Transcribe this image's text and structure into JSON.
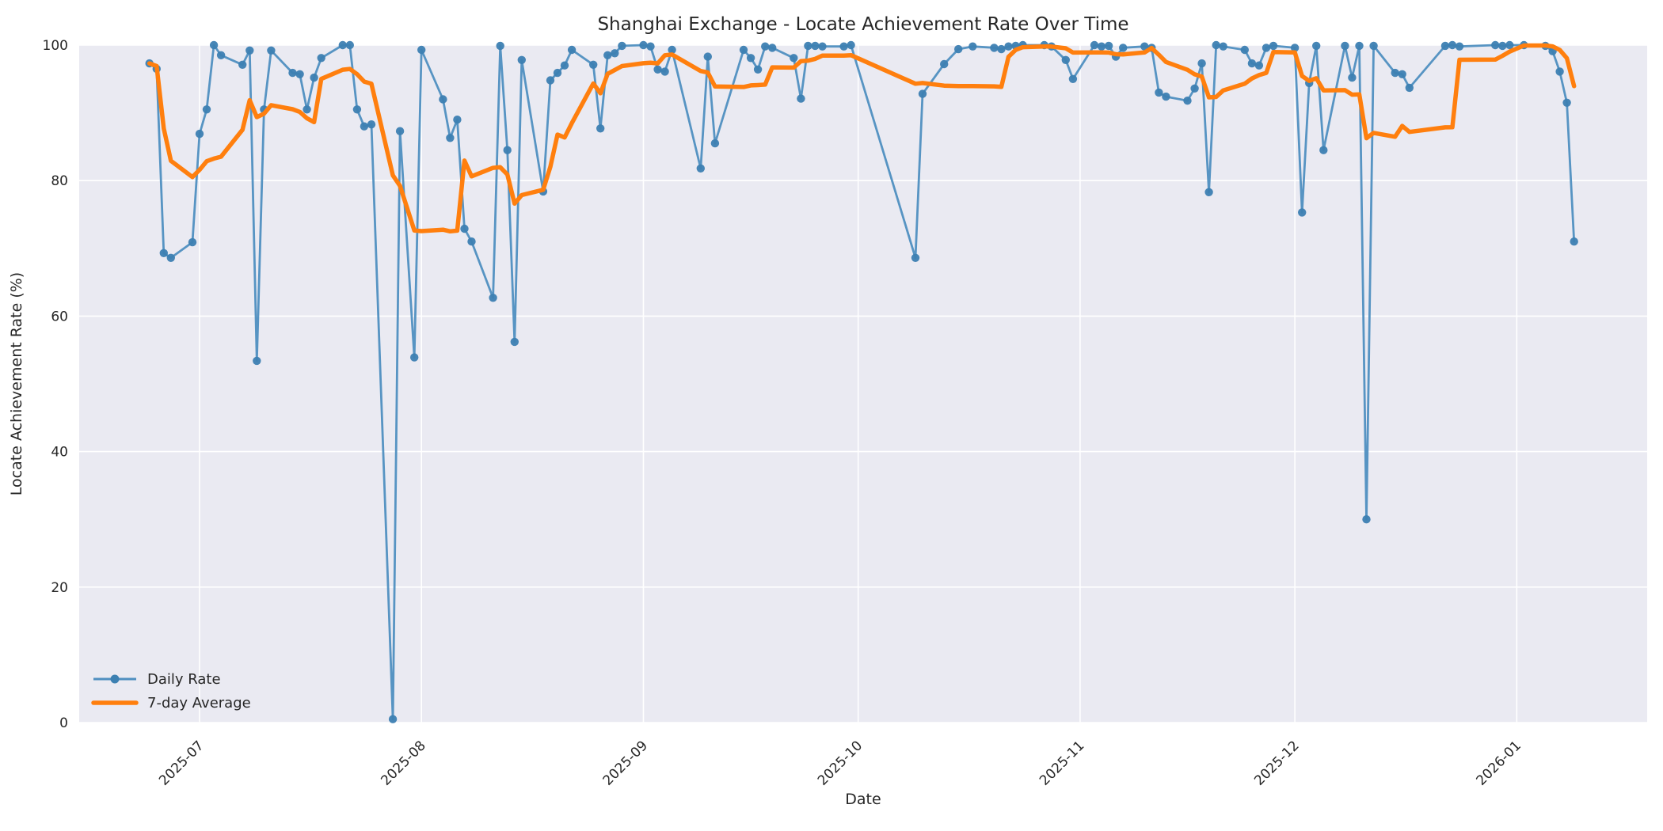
{
  "title": "Shanghai Exchange - Locate Achievement Rate Over Time",
  "axes": {
    "xlabel": "Date",
    "ylabel": "Locate Achievement Rate (%)",
    "y_ticks": [
      0,
      20,
      40,
      60,
      80,
      100
    ],
    "x_ticks": [
      "2025-07",
      "2025-08",
      "2025-09",
      "2025-10",
      "2025-11",
      "2025-12",
      "2026-01"
    ]
  },
  "legend": {
    "items": [
      {
        "label": "Daily Rate",
        "type": "line-with-marker"
      },
      {
        "label": "7-day Average",
        "type": "thick-line"
      }
    ],
    "position": "lower-left"
  },
  "style": {
    "plot_background": "#eaeaf2",
    "figure_background": "#ffffff",
    "gridline_color": "#ffffff",
    "daily_line_color": "#4f8fc0",
    "daily_marker_color": "#3d80b2",
    "avg_line_color": "#ff7f0e",
    "text_color": "#262626"
  },
  "chart_data": {
    "type": "line",
    "title": "Shanghai Exchange - Locate Achievement Rate Over Time",
    "xlabel": "Date",
    "ylabel": "Locate Achievement Rate (%)",
    "ylim": [
      0,
      100
    ],
    "grid": true,
    "legend_position": "lower left",
    "x_tick_labels": [
      "2025-07",
      "2025-08",
      "2025-09",
      "2025-10",
      "2025-11",
      "2025-12",
      "2026-01"
    ],
    "y_tick_labels": [
      0,
      20,
      40,
      60,
      80,
      100
    ],
    "series": [
      {
        "name": "Daily Rate",
        "points": [
          [
            "2025-06-24",
            97.3
          ],
          [
            "2025-06-25",
            96.5
          ],
          [
            "2025-06-26",
            69.3
          ],
          [
            "2025-06-27",
            68.6
          ],
          [
            "2025-06-30",
            70.9
          ],
          [
            "2025-07-01",
            86.9
          ],
          [
            "2025-07-02",
            90.5
          ],
          [
            "2025-07-03",
            100
          ],
          [
            "2025-07-04",
            98.5
          ],
          [
            "2025-07-07",
            97.1
          ],
          [
            "2025-07-08",
            99.2
          ],
          [
            "2025-07-09",
            53.4
          ],
          [
            "2025-07-10",
            90.5
          ],
          [
            "2025-07-11",
            99.2
          ],
          [
            "2025-07-14",
            95.9
          ],
          [
            "2025-07-15",
            95.7
          ],
          [
            "2025-07-16",
            90.5
          ],
          [
            "2025-07-17",
            95.2
          ],
          [
            "2025-07-18",
            98.1
          ],
          [
            "2025-07-21",
            100
          ],
          [
            "2025-07-22",
            100
          ],
          [
            "2025-07-23",
            90.5
          ],
          [
            "2025-07-24",
            88.0
          ],
          [
            "2025-07-25",
            88.3
          ],
          [
            "2025-07-28",
            0.5
          ],
          [
            "2025-07-29",
            87.3
          ],
          [
            "2025-07-31",
            53.9
          ],
          [
            "2025-08-01",
            99.3
          ],
          [
            "2025-08-04",
            92.0
          ],
          [
            "2025-08-05",
            86.3
          ],
          [
            "2025-08-06",
            89.0
          ],
          [
            "2025-08-07",
            72.9
          ],
          [
            "2025-08-08",
            71.0
          ],
          [
            "2025-08-11",
            62.7
          ],
          [
            "2025-08-12",
            99.9
          ],
          [
            "2025-08-13",
            84.5
          ],
          [
            "2025-08-14",
            56.2
          ],
          [
            "2025-08-15",
            97.8
          ],
          [
            "2025-08-18",
            78.4
          ],
          [
            "2025-08-19",
            94.8
          ],
          [
            "2025-08-20",
            95.9
          ],
          [
            "2025-08-21",
            97.0
          ],
          [
            "2025-08-22",
            99.3
          ],
          [
            "2025-08-25",
            97.1
          ],
          [
            "2025-08-26",
            87.7
          ],
          [
            "2025-08-27",
            98.5
          ],
          [
            "2025-08-28",
            98.8
          ],
          [
            "2025-08-29",
            99.9
          ],
          [
            "2025-09-01",
            100
          ],
          [
            "2025-09-02",
            99.8
          ],
          [
            "2025-09-03",
            96.4
          ],
          [
            "2025-09-04",
            96.1
          ],
          [
            "2025-09-05",
            99.3
          ],
          [
            "2025-09-09",
            81.8
          ],
          [
            "2025-09-10",
            98.3
          ],
          [
            "2025-09-11",
            85.5
          ],
          [
            "2025-09-15",
            99.3
          ],
          [
            "2025-09-16",
            98.1
          ],
          [
            "2025-09-17",
            96.4
          ],
          [
            "2025-09-18",
            99.8
          ],
          [
            "2025-09-19",
            99.6
          ],
          [
            "2025-09-22",
            98.1
          ],
          [
            "2025-09-23",
            92.1
          ],
          [
            "2025-09-24",
            99.9
          ],
          [
            "2025-09-25",
            99.9
          ],
          [
            "2025-09-26",
            99.8
          ],
          [
            "2025-09-29",
            99.8
          ],
          [
            "2025-09-30",
            100
          ],
          [
            "2025-10-09",
            68.6
          ],
          [
            "2025-10-10",
            92.8
          ],
          [
            "2025-10-13",
            97.2
          ],
          [
            "2025-10-15",
            99.4
          ],
          [
            "2025-10-17",
            99.8
          ],
          [
            "2025-10-20",
            99.6
          ],
          [
            "2025-10-21",
            99.4
          ],
          [
            "2025-10-22",
            99.8
          ],
          [
            "2025-10-23",
            99.9
          ],
          [
            "2025-10-24",
            100
          ],
          [
            "2025-10-27",
            100
          ],
          [
            "2025-10-28",
            99.8
          ],
          [
            "2025-10-30",
            97.8
          ],
          [
            "2025-10-31",
            95.0
          ],
          [
            "2025-11-03",
            100
          ],
          [
            "2025-11-04",
            99.8
          ],
          [
            "2025-11-05",
            99.9
          ],
          [
            "2025-11-06",
            98.3
          ],
          [
            "2025-11-07",
            99.6
          ],
          [
            "2025-11-10",
            99.8
          ],
          [
            "2025-11-11",
            99.6
          ],
          [
            "2025-11-12",
            93.0
          ],
          [
            "2025-11-13",
            92.4
          ],
          [
            "2025-11-16",
            91.8
          ],
          [
            "2025-11-17",
            93.6
          ],
          [
            "2025-11-18",
            97.3
          ],
          [
            "2025-11-19",
            78.3
          ],
          [
            "2025-11-20",
            100
          ],
          [
            "2025-11-21",
            99.8
          ],
          [
            "2025-11-24",
            99.3
          ],
          [
            "2025-11-25",
            97.3
          ],
          [
            "2025-11-26",
            97.0
          ],
          [
            "2025-11-27",
            99.6
          ],
          [
            "2025-11-28",
            99.9
          ],
          [
            "2025-12-01",
            99.6
          ],
          [
            "2025-12-02",
            75.3
          ],
          [
            "2025-12-03",
            94.4
          ],
          [
            "2025-12-04",
            99.9
          ],
          [
            "2025-12-05",
            84.5
          ],
          [
            "2025-12-08",
            99.9
          ],
          [
            "2025-12-09",
            95.2
          ],
          [
            "2025-12-10",
            99.9
          ],
          [
            "2025-12-11",
            30.0
          ],
          [
            "2025-12-12",
            99.9
          ],
          [
            "2025-12-15",
            95.9
          ],
          [
            "2025-12-16",
            95.7
          ],
          [
            "2025-12-17",
            93.7
          ],
          [
            "2025-12-22",
            99.9
          ],
          [
            "2025-12-23",
            100
          ],
          [
            "2025-12-24",
            99.8
          ],
          [
            "2025-12-29",
            100
          ],
          [
            "2025-12-30",
            99.9
          ],
          [
            "2025-12-31",
            100
          ],
          [
            "2026-01-02",
            100
          ],
          [
            "2026-01-05",
            99.9
          ],
          [
            "2026-01-06",
            99.1
          ],
          [
            "2026-01-07",
            96.1
          ],
          [
            "2026-01-08",
            91.5
          ],
          [
            "2026-01-09",
            71.0
          ]
        ]
      },
      {
        "name": "7-day Average",
        "derived": "rolling mean of Daily Rate over last 7 observations (min_periods=1)"
      }
    ]
  }
}
